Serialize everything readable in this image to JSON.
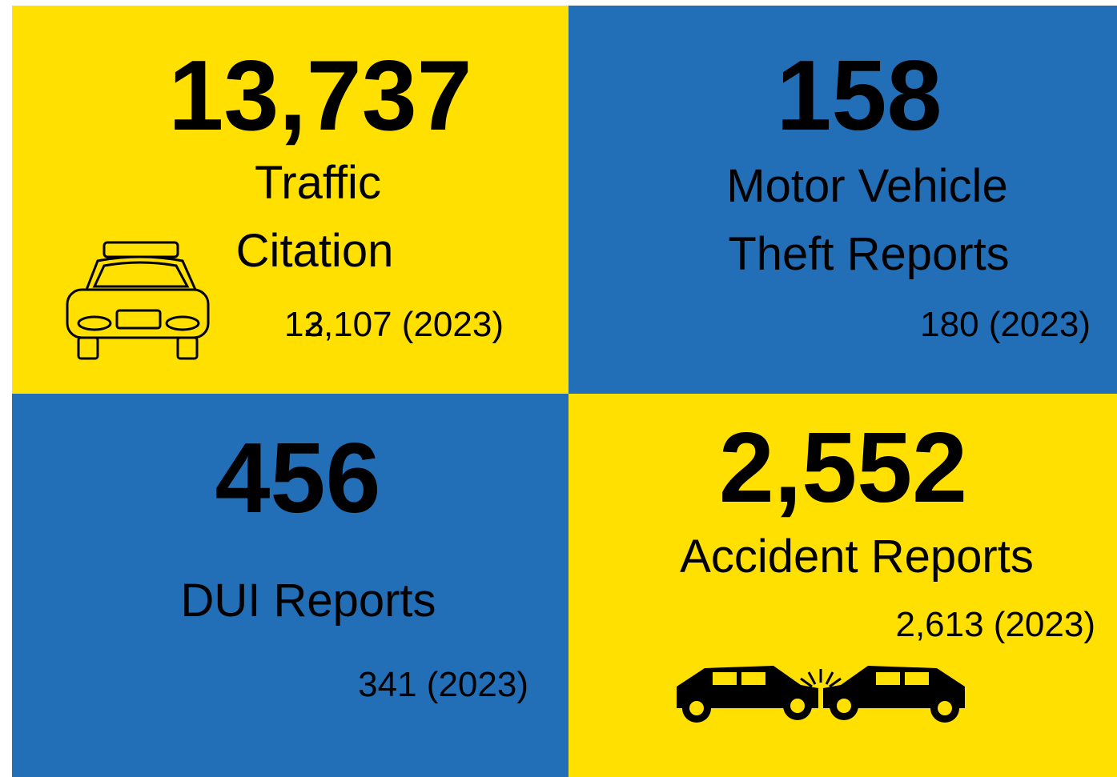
{
  "tiles": [
    {
      "value": "13,737",
      "label": [
        "Traffic",
        "Citation"
      ],
      "prior": "12,107 (2023)",
      "prior_overlay": "3"
    },
    {
      "value": "158",
      "label": [
        "Motor Vehicle",
        "Theft Reports"
      ],
      "prior": "180 (2023)"
    },
    {
      "value": "456",
      "label": [
        "DUI Reports"
      ],
      "prior": "341 (2023)"
    },
    {
      "value": "2,552",
      "label": [
        "Accident Reports"
      ],
      "prior": "2,613 (2023)"
    }
  ]
}
